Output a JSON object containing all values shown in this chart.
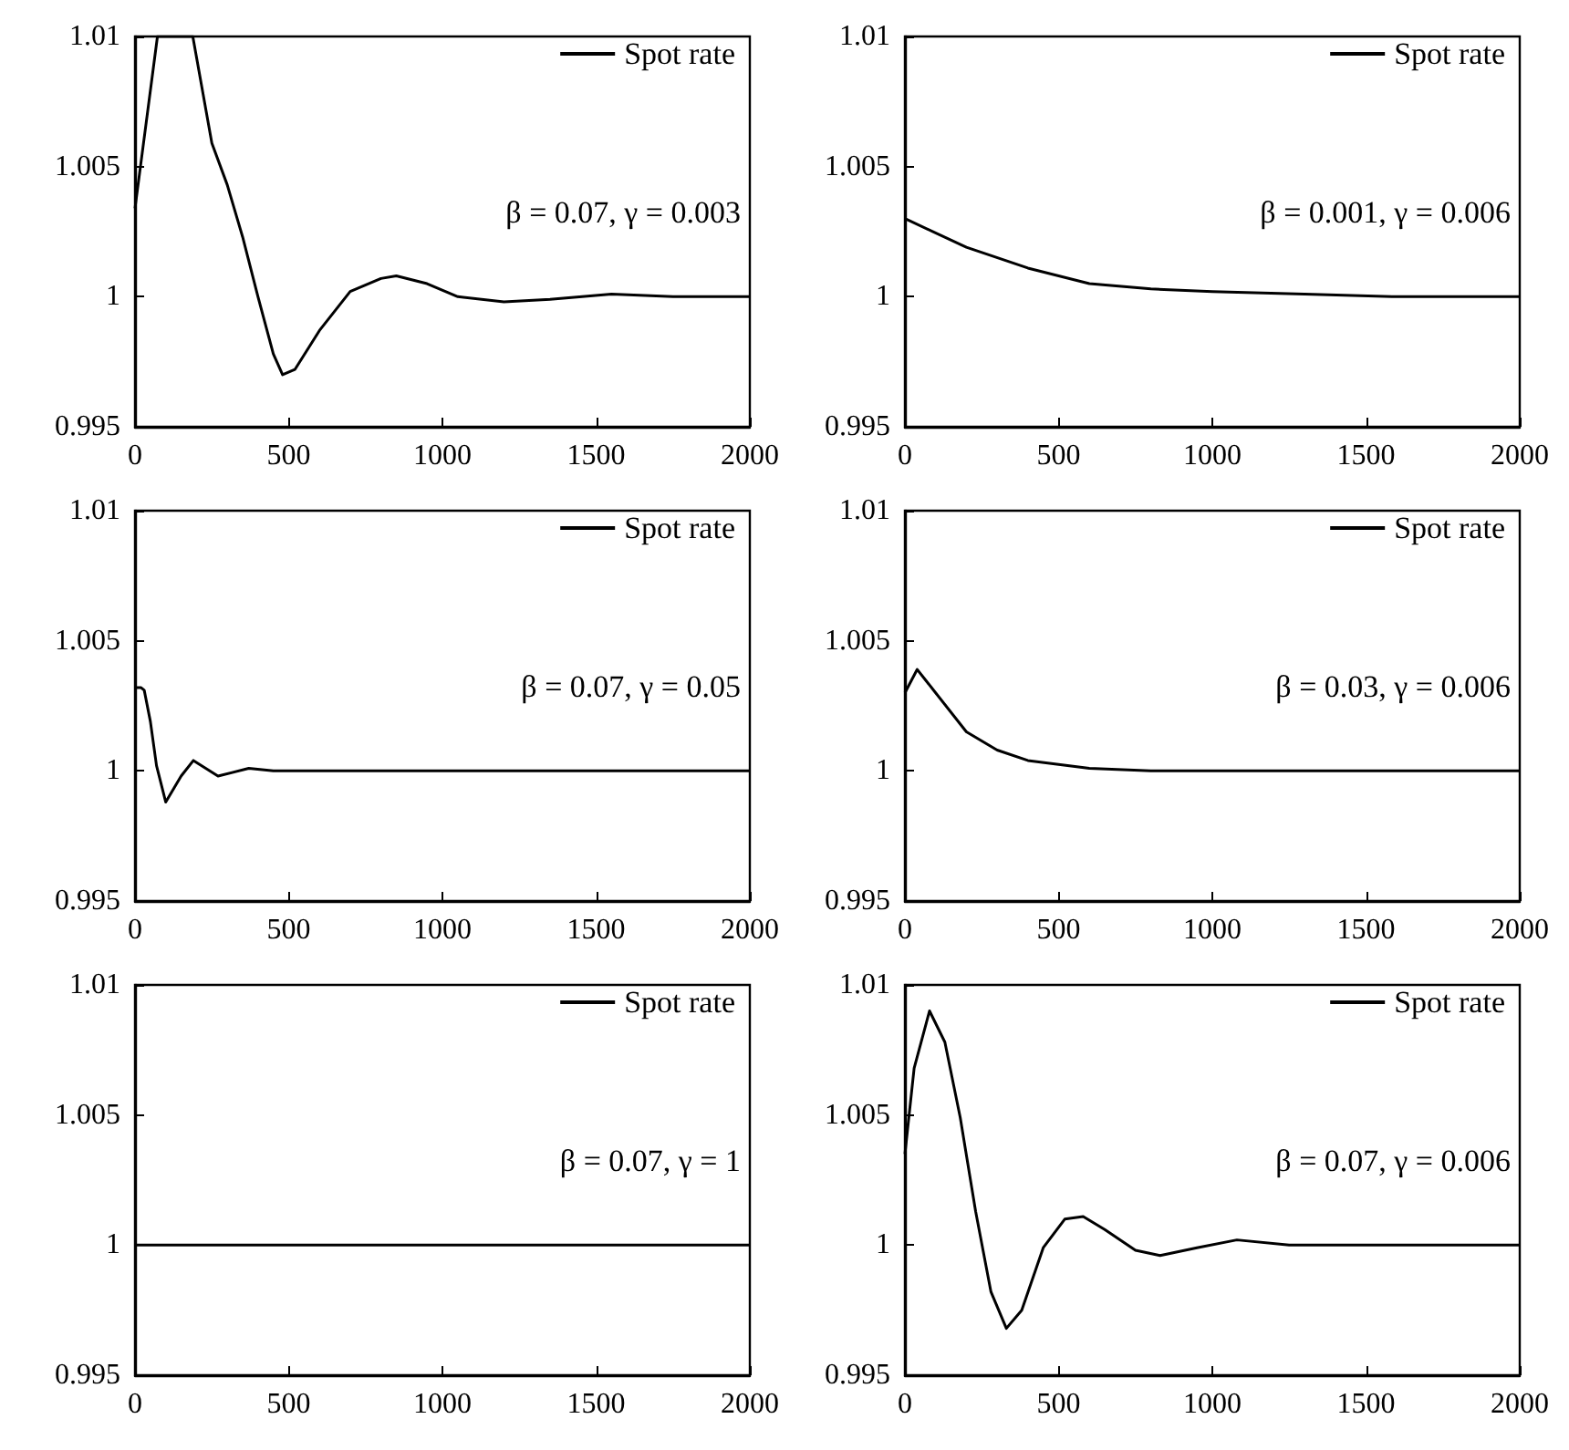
{
  "chart_data": [
    {
      "type": "line",
      "x": [
        0,
        73,
        188,
        250,
        300,
        350,
        400,
        450,
        480,
        520,
        600,
        700,
        800,
        850,
        950,
        1050,
        1200,
        1350,
        1550,
        1750,
        2000
      ],
      "series": [
        {
          "name": "Spot rate",
          "color": "#000000",
          "values": [
            1.0034,
            1.01,
            1.01,
            1.0059,
            1.0043,
            1.0023,
            1.0,
            0.9978,
            0.997,
            0.9972,
            0.9987,
            1.0002,
            1.0007,
            1.0008,
            1.0005,
            1.0,
            0.9998,
            0.9999,
            1.0001,
            1.0,
            1.0
          ]
        }
      ],
      "annotations": [
        "β = 0.07, γ = 0.003"
      ],
      "xlim": [
        0,
        2000
      ],
      "xticks": [
        0,
        500,
        1000,
        1500,
        2000
      ],
      "ylim": [
        0.995,
        1.01
      ],
      "yticks": [
        0.995,
        1,
        1.005,
        1.01
      ],
      "legend": "top right",
      "grid": false
    },
    {
      "type": "line",
      "x": [
        0,
        200,
        400,
        600,
        800,
        1000,
        1300,
        1600,
        2000
      ],
      "series": [
        {
          "name": "Spot rate",
          "color": "#000000",
          "values": [
            1.003,
            1.0019,
            1.0011,
            1.0005,
            1.0003,
            1.0002,
            1.0001,
            1.0,
            1.0
          ]
        }
      ],
      "annotations": [
        "β = 0.001, γ = 0.006"
      ],
      "xlim": [
        0,
        2000
      ],
      "xticks": [
        0,
        500,
        1000,
        1500,
        2000
      ],
      "ylim": [
        0.995,
        1.01
      ],
      "yticks": [
        0.995,
        1,
        1.005,
        1.01
      ],
      "legend": "top right",
      "grid": false
    },
    {
      "type": "line",
      "x": [
        0,
        20,
        30,
        50,
        70,
        100,
        150,
        190,
        270,
        370,
        450,
        2000
      ],
      "series": [
        {
          "name": "Spot rate",
          "color": "#000000",
          "values": [
            1.0032,
            1.0032,
            1.0031,
            1.0019,
            1.0002,
            0.9988,
            0.9998,
            1.0004,
            0.9998,
            1.0001,
            1.0,
            1.0
          ]
        }
      ],
      "annotations": [
        "β = 0.07, γ = 0.05"
      ],
      "xlim": [
        0,
        2000
      ],
      "xticks": [
        0,
        500,
        1000,
        1500,
        2000
      ],
      "ylim": [
        0.995,
        1.01
      ],
      "yticks": [
        0.995,
        1,
        1.005,
        1.01
      ],
      "legend": "top right",
      "grid": false
    },
    {
      "type": "line",
      "x": [
        0,
        40,
        100,
        200,
        300,
        400,
        600,
        800,
        1000,
        2000
      ],
      "series": [
        {
          "name": "Spot rate",
          "color": "#000000",
          "values": [
            1.003,
            1.0039,
            1.003,
            1.0015,
            1.0008,
            1.0004,
            1.0001,
            1.0,
            1.0,
            1.0
          ]
        }
      ],
      "annotations": [
        "β = 0.03, γ = 0.006"
      ],
      "xlim": [
        0,
        2000
      ],
      "xticks": [
        0,
        500,
        1000,
        1500,
        2000
      ],
      "ylim": [
        0.995,
        1.01
      ],
      "yticks": [
        0.995,
        1,
        1.005,
        1.01
      ],
      "legend": "top right",
      "grid": false
    },
    {
      "type": "line",
      "x": [
        0,
        2000
      ],
      "series": [
        {
          "name": "Spot rate",
          "color": "#000000",
          "values": [
            1.0,
            1.0
          ]
        }
      ],
      "annotations": [
        "β = 0.07, γ = 1"
      ],
      "xlim": [
        0,
        2000
      ],
      "xticks": [
        0,
        500,
        1000,
        1500,
        2000
      ],
      "ylim": [
        0.995,
        1.01
      ],
      "yticks": [
        0.995,
        1,
        1.005,
        1.01
      ],
      "legend": "top right",
      "grid": false
    },
    {
      "type": "line",
      "x": [
        0,
        30,
        80,
        130,
        180,
        230,
        280,
        330,
        380,
        450,
        520,
        580,
        650,
        750,
        830,
        950,
        1080,
        1250,
        2000
      ],
      "series": [
        {
          "name": "Spot rate",
          "color": "#000000",
          "values": [
            1.0035,
            1.0068,
            1.009,
            1.0078,
            1.0049,
            1.0013,
            0.9982,
            0.9968,
            0.9975,
            0.9999,
            1.001,
            1.0011,
            1.0006,
            0.9998,
            0.9996,
            0.9999,
            1.0002,
            1.0,
            1.0
          ]
        }
      ],
      "annotations": [
        "β = 0.07, γ = 0.006"
      ],
      "xlim": [
        0,
        2000
      ],
      "xticks": [
        0,
        500,
        1000,
        1500,
        2000
      ],
      "ylim": [
        0.995,
        1.01
      ],
      "yticks": [
        0.995,
        1,
        1.005,
        1.01
      ],
      "legend": "top right",
      "grid": false
    }
  ]
}
